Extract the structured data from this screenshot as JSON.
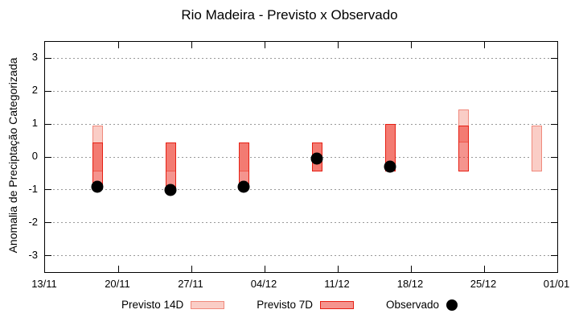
{
  "title": "Rio Madeira - Previsto x Observado",
  "legend": [
    {
      "label": "Previsto 14D",
      "swatch": "light-pink-box"
    },
    {
      "label": "Previsto 7D",
      "swatch": "red-box"
    },
    {
      "label": "Observado",
      "swatch": "black-dot"
    }
  ],
  "colors": {
    "previsto_14d_fill": "#FACDC6",
    "previsto_14d_border": "#F0897C",
    "previsto_7d_fill": "#F9968E",
    "previsto_7d_border": "#E62014",
    "overlap_fill": "#F47167",
    "observado": "#000000",
    "gridline": "#999999",
    "axis": "#000000"
  },
  "chart_data": {
    "type": "bar",
    "subtype": "range-bars-with-scatter",
    "title": "Rio Madeira - Previsto x Observado",
    "xlabel": "",
    "ylabel": "Anomalia de Preciptação Categorizada",
    "ylim": [
      -3.5,
      3.5
    ],
    "y_ticks": [
      -3,
      -2,
      -1,
      0,
      1,
      2,
      3
    ],
    "grid": "horizontal-dotted",
    "legend_position": "bottom",
    "x_tick_labels": [
      "13/11",
      "20/11",
      "27/11",
      "04/12",
      "11/12",
      "18/12",
      "25/12",
      "01/01"
    ],
    "x_tick_days": [
      0,
      7,
      14,
      21,
      28,
      35,
      42,
      49
    ],
    "x_day_max": 49,
    "x_dates": [
      "18/11",
      "25/11",
      "02/12",
      "09/12",
      "16/12",
      "23/12",
      "30/12"
    ],
    "x_days": [
      5,
      12,
      19,
      26,
      33,
      40,
      47
    ],
    "series": [
      {
        "name": "Previsto 14D",
        "kind": "range",
        "low": [
          -0.45,
          -0.45,
          -0.45,
          -0.45,
          -0.45,
          0.45,
          -0.45
        ],
        "high": [
          0.95,
          0.45,
          0.45,
          0.45,
          1.0,
          1.45,
          0.95
        ]
      },
      {
        "name": "Previsto 7D",
        "kind": "range",
        "low": [
          -0.95,
          -1.0,
          -0.9,
          -0.45,
          -0.45,
          -0.45,
          null
        ],
        "high": [
          0.45,
          0.45,
          0.45,
          0.45,
          1.0,
          0.95,
          null
        ]
      },
      {
        "name": "Observado",
        "kind": "scatter",
        "y": [
          -0.9,
          -1.0,
          -0.9,
          -0.05,
          -0.3,
          null,
          null
        ]
      }
    ]
  }
}
